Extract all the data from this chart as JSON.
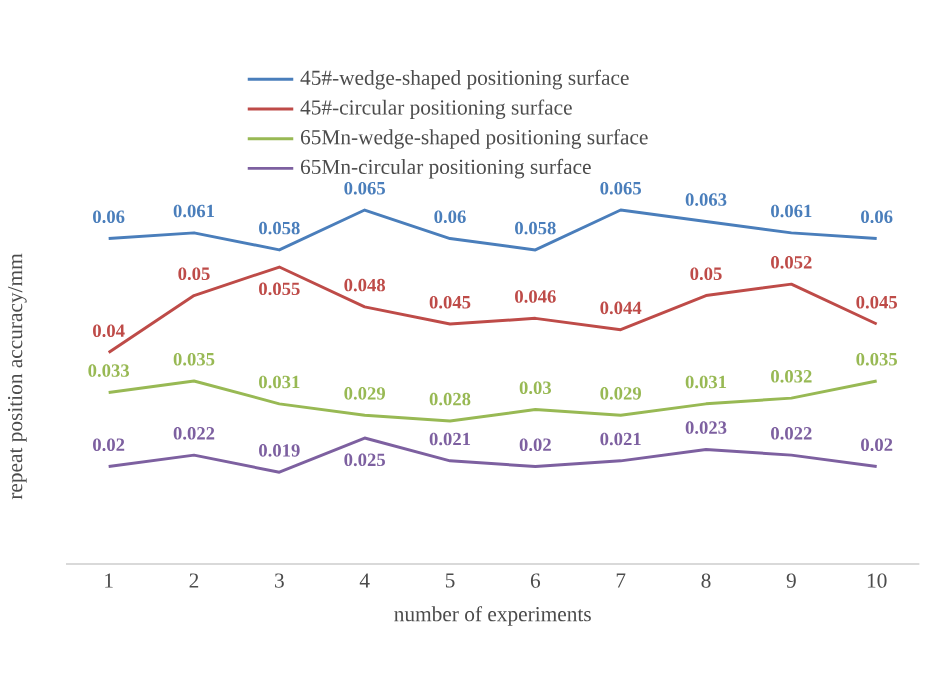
{
  "chart_data": {
    "type": "line",
    "xlabel": "number of experiments",
    "ylabel": "repeat position accuracy/mm",
    "categories": [
      "1",
      "2",
      "3",
      "4",
      "5",
      "6",
      "7",
      "8",
      "9",
      "10"
    ],
    "series": [
      {
        "name": "45#-wedge-shaped positioning surface",
        "color": "#4a7ebb",
        "values": [
          0.06,
          0.061,
          0.058,
          0.065,
          0.06,
          0.058,
          0.065,
          0.063,
          0.061,
          0.06
        ]
      },
      {
        "name": "45#-circular positioning surface",
        "color": "#be4b48",
        "values": [
          0.04,
          0.05,
          0.055,
          0.048,
          0.045,
          0.046,
          0.044,
          0.05,
          0.052,
          0.045
        ]
      },
      {
        "name": "65Mn-wedge-shaped positioning surface",
        "color": "#98b954",
        "values": [
          0.033,
          0.035,
          0.031,
          0.029,
          0.028,
          0.03,
          0.029,
          0.031,
          0.032,
          0.035
        ]
      },
      {
        "name": "65Mn-circular positioning surface",
        "color": "#7d60a0",
        "values": [
          0.02,
          0.022,
          0.019,
          0.025,
          0.021,
          0.02,
          0.021,
          0.023,
          0.022,
          0.02
        ]
      }
    ],
    "tick_labels": "x",
    "data_labels": true,
    "legend": "top",
    "marker": "none",
    "line_style": "solid"
  }
}
